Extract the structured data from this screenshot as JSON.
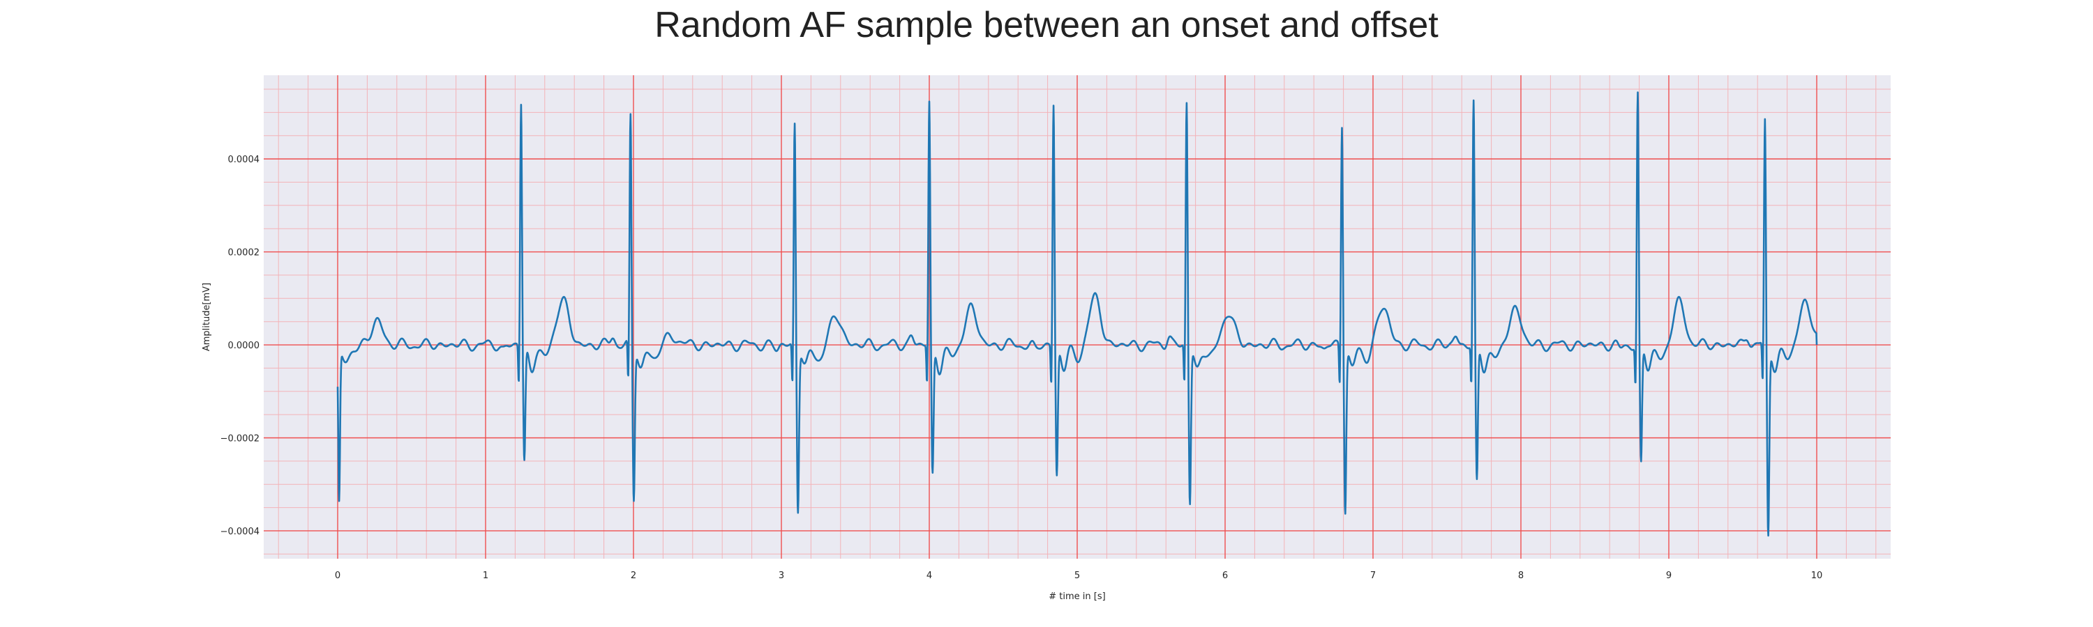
{
  "chart_data": {
    "type": "line",
    "title": "Random AF sample between an onset and offset",
    "xlabel": "# time in [s]",
    "ylabel": "Amplitude[mV]",
    "xlim": [
      -0.5,
      10.5
    ],
    "ylim": [
      -0.00046,
      0.00058
    ],
    "x_ticks": [
      0,
      1,
      2,
      3,
      4,
      5,
      6,
      7,
      8,
      9,
      10
    ],
    "x_tick_labels": [
      "0",
      "1",
      "2",
      "3",
      "4",
      "5",
      "6",
      "7",
      "8",
      "9",
      "10"
    ],
    "y_ticks": [
      -0.0004,
      -0.0002,
      0.0,
      0.0002,
      0.0004
    ],
    "y_tick_labels": [
      "−0.0004",
      "−0.0002",
      "0.0000",
      "0.0002",
      "0.0004"
    ],
    "x_minor_step": 0.2,
    "y_minor_step": 5e-05,
    "grid": true,
    "legend": "none",
    "colors": {
      "line": "#1f77b4",
      "plot_background": "#eaeaf2",
      "major_grid": "#ef4f4f",
      "minor_grid": "#f3b3b8",
      "text": "#262626"
    },
    "series": [
      {
        "x_range": [
          0,
          10
        ],
        "start_point": {
          "x": 0.0,
          "y": -9e-05
        },
        "r_peaks": [
          {
            "t": 1.24,
            "peak": 0.00052,
            "s_trough": -0.00025,
            "t_wave": 0.0001
          },
          {
            "t": 1.98,
            "peak": 0.00049,
            "s_trough": -0.00033,
            "t_wave": 2e-05
          },
          {
            "t": 3.09,
            "peak": 0.00048,
            "s_trough": -0.00035,
            "t_wave": 6e-05
          },
          {
            "t": 4.0,
            "peak": 0.00052,
            "s_trough": -0.00028,
            "t_wave": 8e-05
          },
          {
            "t": 4.84,
            "peak": 0.00052,
            "s_trough": -0.00028,
            "t_wave": 0.0001
          },
          {
            "t": 5.74,
            "peak": 0.00052,
            "s_trough": -0.00034,
            "t_wave": 7e-05
          },
          {
            "t": 6.79,
            "peak": 0.00048,
            "s_trough": -0.00035,
            "t_wave": 8e-05
          },
          {
            "t": 7.68,
            "peak": 0.00052,
            "s_trough": -0.0003,
            "t_wave": 8e-05
          },
          {
            "t": 8.79,
            "peak": 0.00054,
            "s_trough": -0.00026,
            "t_wave": 9e-05
          },
          {
            "t": 9.65,
            "peak": 0.00048,
            "s_trough": -0.00041,
            "t_wave": 5e-05
          }
        ],
        "initial_trough": {
          "t": 0.01,
          "value": -0.00033
        },
        "end_point": {
          "x": 10.0,
          "y": 0.0
        }
      }
    ]
  }
}
